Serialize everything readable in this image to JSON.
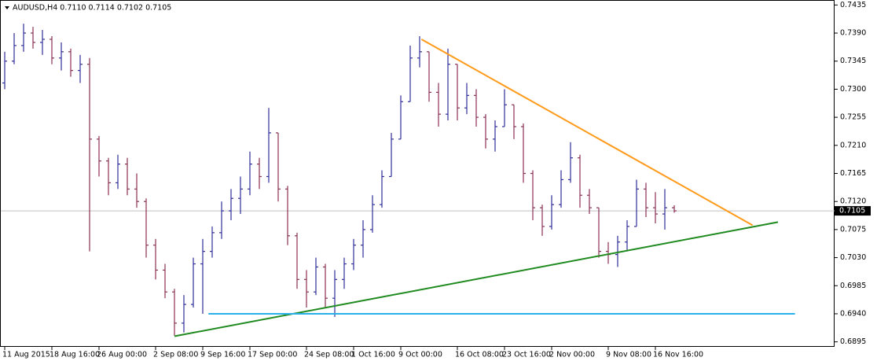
{
  "chart_data": {
    "type": "ohlc",
    "title": "AUDUSD,H4 0.7110 0.7114 0.7102 0.7105",
    "categories": [
      "11 Aug 2015",
      null,
      null,
      null,
      null,
      "18 Aug 16:00",
      null,
      null,
      null,
      null,
      "26 Aug 00:00",
      null,
      null,
      null,
      null,
      null,
      "2 Sep 08:00",
      null,
      null,
      null,
      null,
      "9 Sep 16:00",
      null,
      null,
      null,
      null,
      "17 Sep 00:00",
      null,
      null,
      null,
      null,
      null,
      "24 Sep 08:00",
      null,
      null,
      null,
      null,
      "1 Oct 16:00",
      null,
      null,
      null,
      null,
      "9 Oct 00:00",
      null,
      null,
      null,
      null,
      null,
      "16 Oct 08:00",
      null,
      null,
      null,
      null,
      "23 Oct 16:00",
      null,
      null,
      null,
      null,
      "2 Nov 00:00",
      null,
      null,
      null,
      null,
      null,
      "9 Nov 08:00",
      null,
      null,
      null,
      null,
      "16 Nov 16:00",
      null,
      null
    ],
    "open": [
      0.731,
      0.7345,
      0.737,
      0.739,
      0.7375,
      0.738,
      0.735,
      0.736,
      0.733,
      0.734,
      0.722,
      0.7185,
      0.715,
      0.718,
      0.714,
      0.712,
      0.705,
      0.701,
      0.6975,
      0.6925,
      0.6955,
      0.702,
      0.704,
      0.707,
      0.7105,
      0.7125,
      0.714,
      0.718,
      0.716,
      0.723,
      0.714,
      0.7065,
      0.6995,
      0.6975,
      0.7015,
      0.6965,
      0.6995,
      0.702,
      0.705,
      0.7075,
      0.7115,
      0.716,
      0.722,
      0.728,
      0.735,
      0.736,
      0.7295,
      0.726,
      0.734,
      0.727,
      0.729,
      0.7255,
      0.722,
      0.724,
      0.7275,
      0.724,
      0.7165,
      0.711,
      0.708,
      0.7115,
      0.7155,
      0.719,
      0.713,
      0.711,
      0.704,
      0.7035,
      0.7055,
      0.708,
      0.714,
      0.711,
      0.71,
      0.711
    ],
    "high": [
      0.736,
      0.739,
      0.7405,
      0.74,
      0.7395,
      0.7385,
      0.7375,
      0.7365,
      0.7355,
      0.735,
      0.7225,
      0.719,
      0.7195,
      0.719,
      0.7165,
      0.7125,
      0.706,
      0.702,
      0.698,
      0.697,
      0.703,
      0.706,
      0.708,
      0.712,
      0.714,
      0.716,
      0.72,
      0.719,
      0.727,
      0.723,
      0.7145,
      0.707,
      0.701,
      0.703,
      0.702,
      0.701,
      0.703,
      0.706,
      0.709,
      0.713,
      0.717,
      0.723,
      0.729,
      0.737,
      0.7385,
      0.736,
      0.731,
      0.7365,
      0.734,
      0.731,
      0.73,
      0.726,
      0.725,
      0.73,
      0.7275,
      0.7245,
      0.717,
      0.7115,
      0.713,
      0.717,
      0.7215,
      0.7195,
      0.714,
      0.711,
      0.7055,
      0.7065,
      0.709,
      0.7155,
      0.715,
      0.7135,
      0.714,
      0.7114
    ],
    "low": [
      0.73,
      0.734,
      0.736,
      0.7365,
      0.7355,
      0.734,
      0.733,
      0.732,
      0.731,
      0.704,
      0.716,
      0.713,
      0.714,
      0.713,
      0.711,
      0.703,
      0.6995,
      0.6965,
      0.6905,
      0.691,
      0.695,
      0.694,
      0.703,
      0.706,
      0.709,
      0.71,
      0.713,
      0.714,
      0.715,
      0.712,
      0.705,
      0.698,
      0.695,
      0.697,
      0.695,
      0.6935,
      0.698,
      0.701,
      0.703,
      0.707,
      0.711,
      0.716,
      0.722,
      0.728,
      0.7335,
      0.728,
      0.724,
      0.725,
      0.725,
      0.726,
      0.724,
      0.7205,
      0.72,
      0.724,
      0.722,
      0.715,
      0.709,
      0.7065,
      0.7075,
      0.711,
      0.715,
      0.711,
      0.71,
      0.703,
      0.702,
      0.7015,
      0.704,
      0.708,
      0.7095,
      0.7085,
      0.7075,
      0.7102
    ],
    "close": [
      0.7345,
      0.737,
      0.739,
      0.7375,
      0.738,
      0.735,
      0.736,
      0.733,
      0.734,
      0.722,
      0.7185,
      0.715,
      0.718,
      0.714,
      0.712,
      0.705,
      0.701,
      0.6975,
      0.6925,
      0.6955,
      0.702,
      0.704,
      0.707,
      0.7105,
      0.7125,
      0.714,
      0.718,
      0.716,
      0.723,
      0.714,
      0.7065,
      0.6995,
      0.6975,
      0.7015,
      0.6965,
      0.6995,
      0.702,
      0.705,
      0.7075,
      0.7115,
      0.716,
      0.722,
      0.728,
      0.735,
      0.736,
      0.7295,
      0.726,
      0.734,
      0.727,
      0.729,
      0.7255,
      0.722,
      0.724,
      0.7275,
      0.724,
      0.7165,
      0.711,
      0.708,
      0.7115,
      0.7155,
      0.719,
      0.713,
      0.711,
      0.704,
      0.7035,
      0.7055,
      0.708,
      0.714,
      0.711,
      0.71,
      0.711,
      0.7105
    ],
    "up_color": "#2e2e9a",
    "down_color": "#8a2f52",
    "ylim": [
      0.6887,
      0.7443
    ],
    "yticks": [
      {
        "value": 0.7435,
        "label": "0.7435"
      },
      {
        "value": 0.739,
        "label": "0.7390"
      },
      {
        "value": 0.7345,
        "label": "0.7345"
      },
      {
        "value": 0.73,
        "label": "0.7300"
      },
      {
        "value": 0.7255,
        "label": "0.7255"
      },
      {
        "value": 0.721,
        "label": "0.7210"
      },
      {
        "value": 0.7165,
        "label": "0.7165"
      },
      {
        "value": 0.712,
        "label": "0.7120"
      },
      {
        "value": 0.7075,
        "label": "0.7075"
      },
      {
        "value": 0.703,
        "label": "0.7030"
      },
      {
        "value": 0.6985,
        "label": "0.6985"
      },
      {
        "value": 0.694,
        "label": "0.6940"
      },
      {
        "value": 0.6895,
        "label": "0.6895"
      }
    ],
    "current_price": {
      "value": 0.7105,
      "label": "0.7105"
    },
    "trendlines": [
      {
        "color": "#ff9a1a",
        "x": [
          44.2,
          79.3
        ],
        "y": [
          0.738,
          0.7082
        ]
      },
      {
        "color": "#1f8a1f",
        "x": [
          18.0,
          82.0
        ],
        "y": [
          0.6904,
          0.7087
        ]
      },
      {
        "color": "#2ab0e8",
        "x": [
          21.6,
          83.8
        ],
        "y": [
          0.694,
          0.694
        ]
      }
    ]
  }
}
